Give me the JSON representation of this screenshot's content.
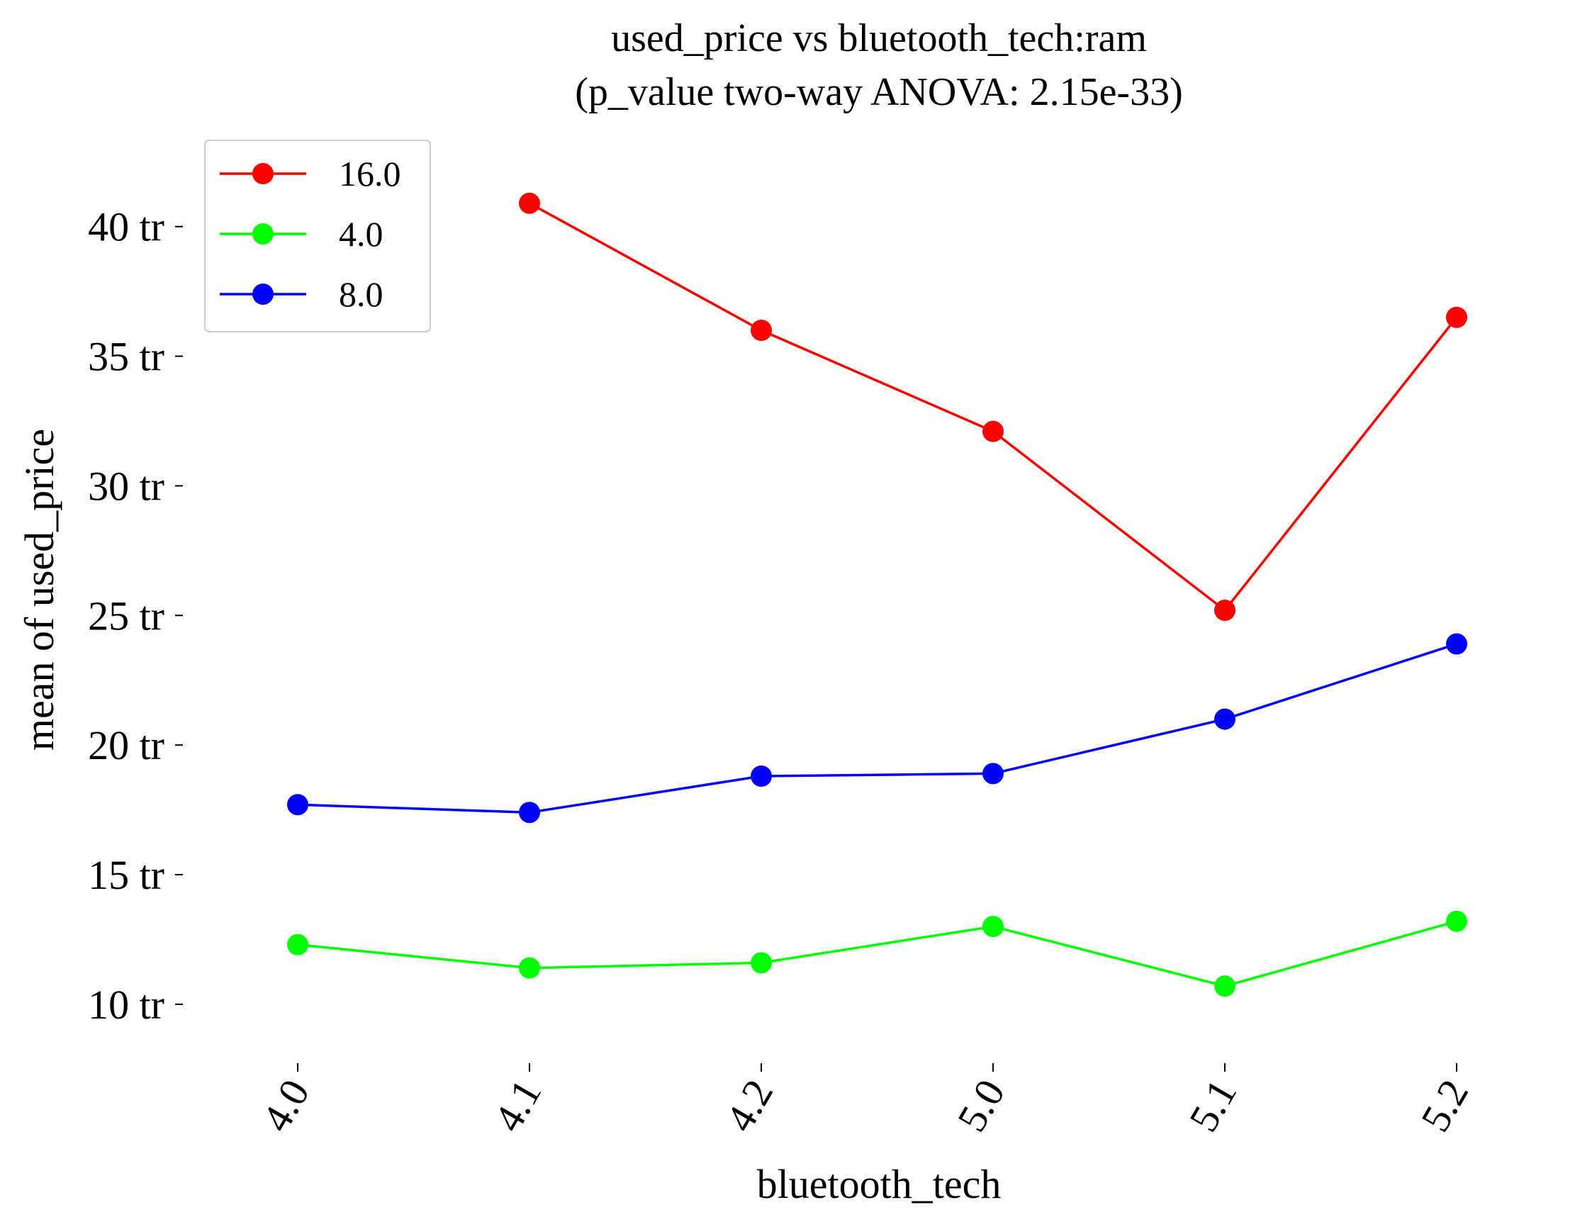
{
  "chart_data": {
    "type": "line",
    "title_line1": "used_price vs bluetooth_tech:ram",
    "title_line2": "(p_value two-way ANOVA: 2.15e-33)",
    "xlabel": "bluetooth_tech",
    "ylabel": "mean of used_price",
    "categories": [
      "4.0",
      "4.1",
      "4.2",
      "5.0",
      "5.1",
      "5.2"
    ],
    "ylim": [
      8,
      43
    ],
    "yticks": [
      10,
      15,
      20,
      25,
      30,
      35,
      40
    ],
    "ytick_labels": [
      "10 tr",
      "15 tr",
      "20 tr",
      "25 tr",
      "30 tr",
      "35 tr",
      "40 tr"
    ],
    "grid": false,
    "legend_position": "top-left",
    "series": [
      {
        "name": "16.0",
        "color": "#ff0000",
        "values": [
          null,
          40.9,
          36.0,
          32.1,
          25.2,
          36.5
        ]
      },
      {
        "name": "4.0",
        "color": "#00ff00",
        "values": [
          12.3,
          11.4,
          11.6,
          13.0,
          10.7,
          13.2
        ]
      },
      {
        "name": "8.0",
        "color": "#0000ff",
        "values": [
          17.7,
          17.4,
          18.8,
          18.9,
          21.0,
          23.9
        ]
      }
    ]
  }
}
